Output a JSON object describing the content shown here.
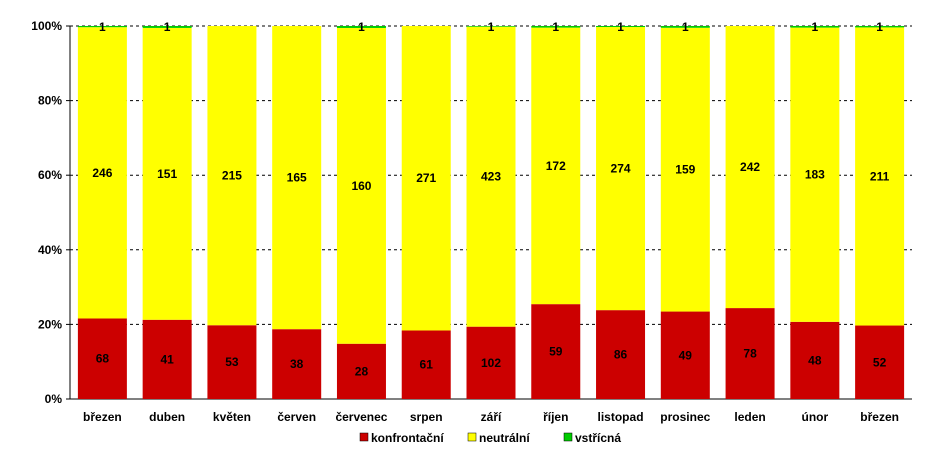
{
  "chart_data": {
    "type": "bar",
    "stacked": "percent",
    "categories": [
      "březen",
      "duben",
      "květen",
      "červen",
      "červenec",
      "srpen",
      "září",
      "říjen",
      "listopad",
      "prosinec",
      "leden",
      "únor",
      "březen"
    ],
    "series": [
      {
        "name": "konfrontační",
        "color": "#cc0000",
        "values": [
          68,
          41,
          53,
          38,
          28,
          61,
          102,
          59,
          86,
          49,
          78,
          48,
          52
        ]
      },
      {
        "name": "neutrální",
        "color": "#ffff00",
        "values": [
          246,
          151,
          215,
          165,
          160,
          271,
          423,
          172,
          274,
          159,
          242,
          183,
          211
        ]
      },
      {
        "name": "vstřícná",
        "color": "#00cc00",
        "values": [
          1,
          1,
          0,
          0,
          1,
          0,
          1,
          1,
          1,
          1,
          0,
          1,
          1
        ]
      }
    ],
    "y_ticks": [
      "0%",
      "20%",
      "40%",
      "60%",
      "80%",
      "100%"
    ],
    "ylim": [
      0,
      100
    ],
    "grid": true,
    "legend_position": "bottom"
  }
}
